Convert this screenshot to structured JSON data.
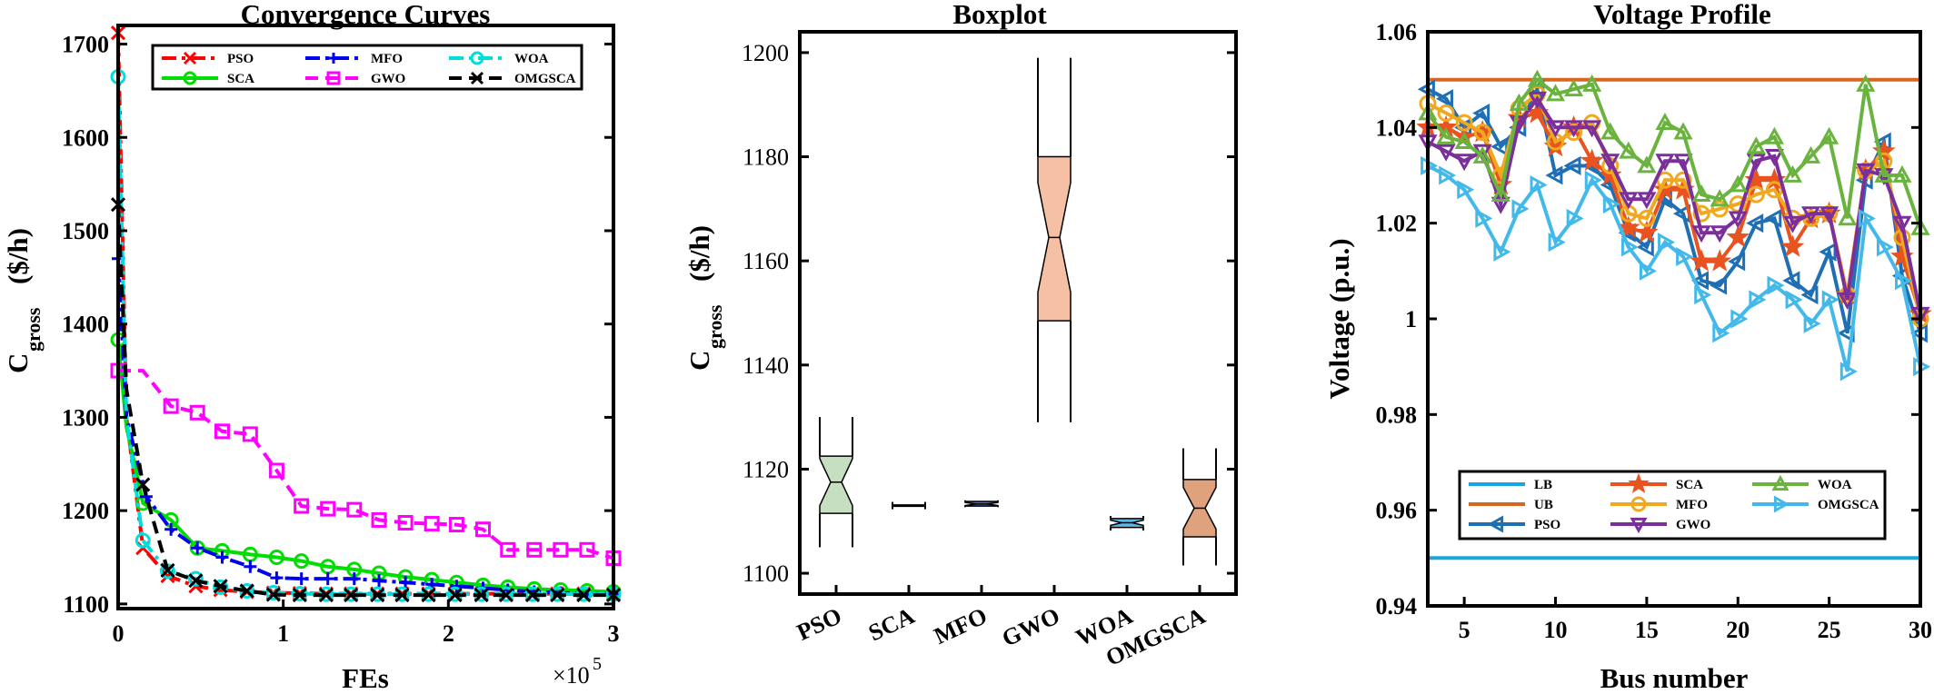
{
  "chart_data": [
    {
      "type": "line",
      "title": "Convergence Curves",
      "xlabel": "FEs",
      "xlabel_exponent": "×10",
      "xlabel_exponent_power": "5",
      "ylabel_main": "C",
      "ylabel_sub": "gross",
      "ylabel_unit": "($/h)",
      "xlim": [
        0,
        300000
      ],
      "ylim": [
        1095,
        1720
      ],
      "xticks": [
        0,
        100000,
        200000,
        300000
      ],
      "xtick_labels": [
        "0",
        "1",
        "2",
        "3"
      ],
      "yticks": [
        1100,
        1200,
        1300,
        1400,
        1500,
        1600,
        1700
      ],
      "ytick_labels": [
        "1100",
        "1200",
        "1300",
        "1400",
        "1500",
        "1600",
        "1700"
      ],
      "legend_position": "top",
      "series": [
        {
          "name": "PSO",
          "color": "#ff0000",
          "marker": "x",
          "dash": "dashdot",
          "x": [
            0,
            5000,
            15000,
            30000,
            47000,
            62000,
            78000,
            94000,
            110000,
            126000,
            141000,
            157000,
            172000,
            188000,
            204000,
            220000,
            235000,
            251000,
            266000,
            282000,
            300000
          ],
          "y": [
            1712,
            1300,
            1160,
            1130,
            1119,
            1115,
            1113,
            1112,
            1111.5,
            1111,
            1111,
            1111,
            1111,
            1111,
            1111,
            1111,
            1111,
            1111,
            1111,
            1111,
            1111
          ]
        },
        {
          "name": "SCA",
          "color": "#00dd00",
          "marker": "o",
          "dash": "solid",
          "x": [
            0,
            5000,
            15000,
            32000,
            48000,
            63000,
            80000,
            96000,
            111000,
            127000,
            143000,
            158000,
            174000,
            190000,
            205000,
            221000,
            236000,
            252000,
            268000,
            284000,
            300000
          ],
          "y": [
            1383,
            1290,
            1208,
            1190,
            1160,
            1157,
            1153,
            1150,
            1146,
            1140,
            1137,
            1133,
            1129,
            1126,
            1123,
            1120,
            1118,
            1116,
            1115,
            1114,
            1113
          ]
        },
        {
          "name": "MFO",
          "color": "#0000ee",
          "marker": "+",
          "dash": "dashdot",
          "x": [
            0,
            5000,
            17000,
            32000,
            48000,
            63000,
            80000,
            96000,
            111000,
            127000,
            143000,
            158000,
            174000,
            190000,
            205000,
            221000,
            236000,
            252000,
            268000,
            284000,
            300000
          ],
          "y": [
            1470,
            1300,
            1215,
            1180,
            1160,
            1150,
            1140,
            1128,
            1127,
            1127,
            1127,
            1125,
            1123,
            1121,
            1119,
            1117,
            1115,
            1113,
            1112,
            1111,
            1111
          ]
        },
        {
          "name": "GWO",
          "color": "#ff00ff",
          "marker": "s",
          "dash": "dash",
          "x": [
            0,
            15000,
            32000,
            48000,
            63000,
            80000,
            96000,
            111000,
            127000,
            143000,
            158000,
            174000,
            190000,
            205000,
            221000,
            236000,
            252000,
            268000,
            284000,
            300000
          ],
          "y": [
            1350,
            1350,
            1312,
            1305,
            1285,
            1282,
            1243,
            1205,
            1202,
            1201,
            1190,
            1187,
            1186,
            1185,
            1180,
            1158,
            1158,
            1158,
            1158,
            1149
          ]
        },
        {
          "name": "WOA",
          "color": "#00dddd",
          "marker": "o",
          "dash": "dashdot",
          "x": [
            0,
            5000,
            15000,
            30000,
            47000,
            62000,
            78000,
            94000,
            110000,
            126000,
            141000,
            157000,
            172000,
            188000,
            204000,
            220000,
            235000,
            251000,
            266000,
            282000,
            300000
          ],
          "y": [
            1665,
            1300,
            1168,
            1135,
            1127,
            1118,
            1114,
            1112,
            1111,
            1110.5,
            1110.5,
            1110.5,
            1110.5,
            1110.5,
            1110.5,
            1110.5,
            1110.5,
            1110.5,
            1110.5,
            1110.5,
            1110.5
          ]
        },
        {
          "name": "OMGSCA",
          "color": "#000000",
          "marker": "x",
          "dash": "dash",
          "x": [
            0,
            5000,
            15000,
            30000,
            47000,
            62000,
            78000,
            94000,
            110000,
            126000,
            141000,
            157000,
            172000,
            188000,
            204000,
            220000,
            235000,
            251000,
            266000,
            282000,
            300000
          ],
          "y": [
            1528,
            1330,
            1228,
            1136,
            1125,
            1119,
            1114,
            1110,
            1109.5,
            1109.5,
            1109.5,
            1109.5,
            1109.5,
            1109.5,
            1109.5,
            1109.5,
            1109.5,
            1109.5,
            1109.5,
            1109.5,
            1109.5
          ]
        }
      ]
    },
    {
      "type": "box",
      "title": "Boxplot",
      "ylabel_main": "C",
      "ylabel_sub": "gross",
      "ylabel_unit": "($/h)",
      "ylim": [
        1096,
        1204
      ],
      "yticks": [
        1100,
        1120,
        1140,
        1160,
        1180,
        1200
      ],
      "ytick_labels": [
        "1100",
        "1120",
        "1140",
        "1160",
        "1180",
        "1200"
      ],
      "categories": [
        "PSO",
        "SCA",
        "MFO",
        "GWO",
        "WOA",
        "OMGSCA"
      ],
      "boxes": [
        {
          "name": "PSO",
          "whisker_low": 1105,
          "q1": 1111.5,
          "median": 1117.5,
          "q3": 1122.5,
          "whisker_high": 1130,
          "notch_low": 1113,
          "notch_high": 1122,
          "color": "#c6dfc0"
        },
        {
          "name": "SCA",
          "whisker_low": 1113,
          "q1": 1113,
          "median": 1113,
          "q3": 1113,
          "whisker_high": 1113,
          "notch_low": 1113,
          "notch_high": 1113,
          "color": "#ffffff"
        },
        {
          "name": "MFO",
          "whisker_low": 1112.7,
          "q1": 1112.9,
          "median": 1113.3,
          "q3": 1113.8,
          "whisker_high": 1114,
          "notch_low": 1113,
          "notch_high": 1113.6,
          "color": "#4a6fd0"
        },
        {
          "name": "GWO",
          "whisker_low": 1129,
          "q1": 1148.5,
          "median": 1164.5,
          "q3": 1180,
          "whisker_high": 1199,
          "notch_low": 1154,
          "notch_high": 1175,
          "color": "#f5c0a4"
        },
        {
          "name": "WOA",
          "whisker_low": 1108.2,
          "q1": 1108.8,
          "median": 1109.7,
          "q3": 1110.5,
          "whisker_high": 1111,
          "notch_low": 1109.2,
          "notch_high": 1110.2,
          "color": "#5fb8e8"
        },
        {
          "name": "OMGSCA",
          "whisker_low": 1101.5,
          "q1": 1107,
          "median": 1112.5,
          "q3": 1118,
          "whisker_high": 1124,
          "notch_low": 1108.5,
          "notch_high": 1116.5,
          "color": "#e0a27c"
        }
      ]
    },
    {
      "type": "line",
      "title": "Voltage Profile",
      "xlabel": "Bus number",
      "ylabel": "Voltage (p.u.)",
      "xlim": [
        3,
        30
      ],
      "ylim": [
        0.94,
        1.06
      ],
      "xticks": [
        5,
        10,
        15,
        20,
        25,
        30
      ],
      "xtick_labels": [
        "5",
        "10",
        "15",
        "20",
        "25",
        "30"
      ],
      "yticks": [
        0.94,
        0.96,
        0.98,
        1.0,
        1.02,
        1.04,
        1.06
      ],
      "ytick_labels": [
        "0.94",
        "0.96",
        "0.98",
        "1",
        "1.02",
        "1.04",
        "1.06"
      ],
      "legend_position": "bottom-left",
      "x": [
        3,
        4,
        5,
        6,
        7,
        8,
        9,
        10,
        11,
        12,
        13,
        14,
        15,
        16,
        17,
        18,
        19,
        20,
        21,
        22,
        23,
        24,
        25,
        26,
        27,
        28,
        29,
        30
      ],
      "series": [
        {
          "name": "LB",
          "color": "#19a6e0",
          "marker": "none",
          "y": [
            0.95,
            0.95,
            0.95,
            0.95,
            0.95,
            0.95,
            0.95,
            0.95,
            0.95,
            0.95,
            0.95,
            0.95,
            0.95,
            0.95,
            0.95,
            0.95,
            0.95,
            0.95,
            0.95,
            0.95,
            0.95,
            0.95,
            0.95,
            0.95,
            0.95,
            0.95,
            0.95,
            0.95
          ]
        },
        {
          "name": "UB",
          "color": "#d9661f",
          "marker": "none",
          "y": [
            1.05,
            1.05,
            1.05,
            1.05,
            1.05,
            1.05,
            1.05,
            1.05,
            1.05,
            1.05,
            1.05,
            1.05,
            1.05,
            1.05,
            1.05,
            1.05,
            1.05,
            1.05,
            1.05,
            1.05,
            1.05,
            1.05,
            1.05,
            1.05,
            1.05,
            1.05,
            1.05,
            1.05
          ]
        },
        {
          "name": "PSO",
          "color": "#1f6fb5",
          "marker": "tri-left",
          "y": [
            1.048,
            1.046,
            1.04,
            1.043,
            1.036,
            1.04,
            1.048,
            1.03,
            1.032,
            1.032,
            1.028,
            1.018,
            1.015,
            1.025,
            1.022,
            1.008,
            1.007,
            1.012,
            1.02,
            1.021,
            1.008,
            1.005,
            1.014,
            0.997,
            1.029,
            1.037,
            1.009,
            0.997
          ]
        },
        {
          "name": "SCA",
          "color": "#e8531f",
          "marker": "star",
          "y": [
            1.04,
            1.04,
            1.038,
            1.039,
            1.028,
            1.042,
            1.043,
            1.036,
            1.04,
            1.033,
            1.03,
            1.019,
            1.018,
            1.027,
            1.027,
            1.012,
            1.012,
            1.017,
            1.029,
            1.029,
            1.015,
            1.021,
            1.022,
            1.005,
            1.031,
            1.035,
            1.013,
            1.001
          ]
        },
        {
          "name": "MFO",
          "color": "#f0a81f",
          "marker": "o",
          "y": [
            1.045,
            1.043,
            1.041,
            1.039,
            1.03,
            1.044,
            1.047,
            1.037,
            1.039,
            1.041,
            1.032,
            1.022,
            1.021,
            1.029,
            1.029,
            1.022,
            1.023,
            1.024,
            1.026,
            1.027,
            1.021,
            1.021,
            1.022,
            1.005,
            1.031,
            1.033,
            1.017,
            1.0
          ]
        },
        {
          "name": "GWO",
          "color": "#7a2f9b",
          "marker": "tri-down",
          "y": [
            1.037,
            1.035,
            1.033,
            1.035,
            1.024,
            1.041,
            1.046,
            1.04,
            1.04,
            1.04,
            1.033,
            1.025,
            1.025,
            1.033,
            1.033,
            1.018,
            1.018,
            1.021,
            1.033,
            1.034,
            1.02,
            1.022,
            1.022,
            1.004,
            1.031,
            1.03,
            1.02,
            1.001
          ]
        },
        {
          "name": "WOA",
          "color": "#6bb33f",
          "marker": "tri-up",
          "y": [
            1.043,
            1.038,
            1.037,
            1.034,
            1.026,
            1.045,
            1.05,
            1.047,
            1.048,
            1.049,
            1.039,
            1.035,
            1.032,
            1.041,
            1.039,
            1.026,
            1.025,
            1.028,
            1.036,
            1.038,
            1.03,
            1.034,
            1.038,
            1.021,
            1.049,
            1.03,
            1.03,
            1.019
          ]
        },
        {
          "name": "OMGSCA",
          "color": "#43b9ea",
          "marker": "tri-right",
          "y": [
            1.032,
            1.03,
            1.027,
            1.021,
            1.014,
            1.023,
            1.028,
            1.016,
            1.021,
            1.029,
            1.024,
            1.015,
            1.01,
            1.016,
            1.013,
            1.005,
            0.997,
            1.0,
            1.004,
            1.007,
            1.004,
            0.999,
            1.004,
            0.989,
            1.021,
            1.015,
            1.008,
            0.99
          ]
        }
      ]
    }
  ]
}
